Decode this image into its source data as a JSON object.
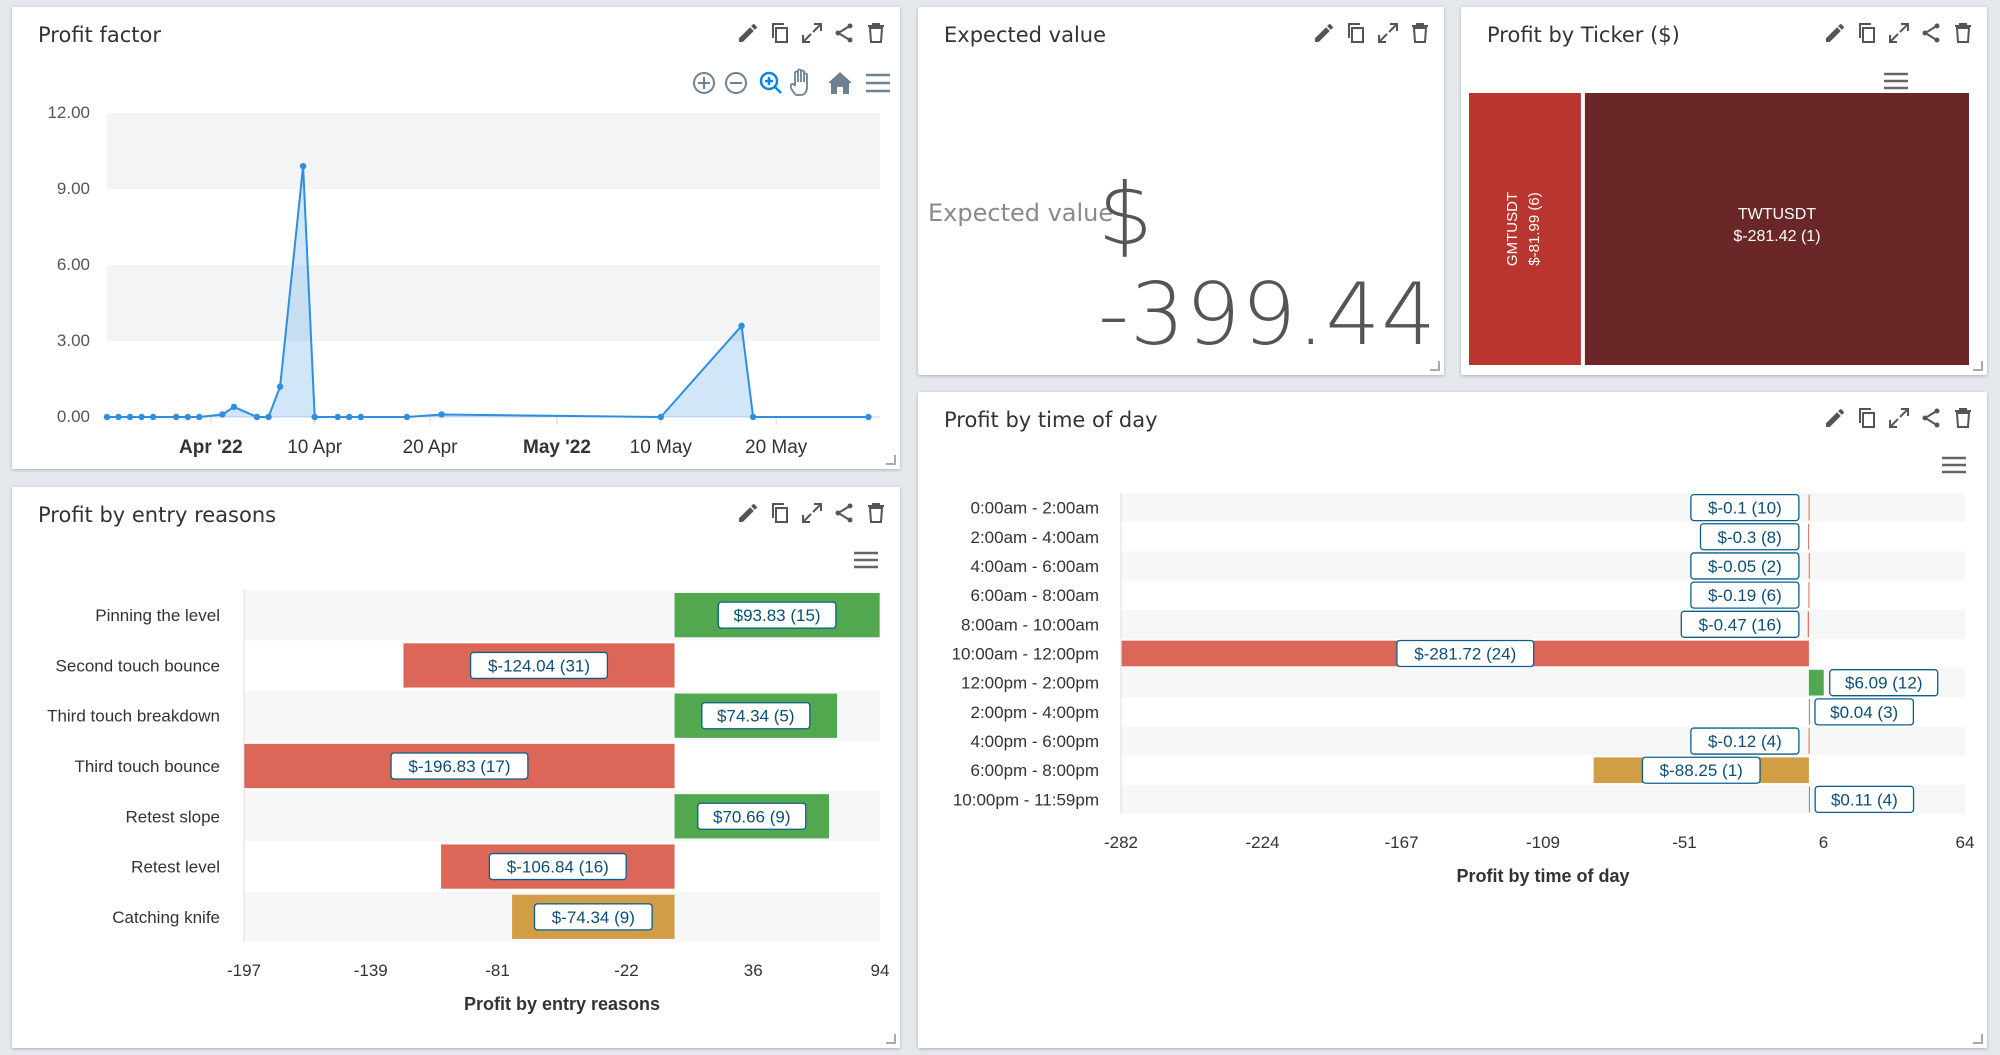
{
  "panels": {
    "profit_factor": {
      "title": "Profit factor",
      "toolbar_icons": [
        "zoom-in-icon",
        "zoom-out-icon",
        "magnify-icon",
        "pan-hand-icon",
        "home-icon",
        "menu-icon"
      ]
    },
    "expected_value": {
      "title": "Expected value",
      "label": "Expected value",
      "value": "$ -399.44"
    },
    "profit_by_ticker": {
      "title": "Profit by Ticker ($)"
    },
    "profit_by_entry": {
      "title": "Profit by entry reasons"
    },
    "profit_by_time": {
      "title": "Profit by time of day"
    }
  },
  "colors": {
    "positive": "#52a84e",
    "negative": "#dc6759",
    "neutral": "#d19d45",
    "line": "#2e8fe0",
    "treemap_light": "#b83530",
    "treemap_dark": "#6b2628"
  },
  "chart_data": [
    {
      "id": "profit_factor",
      "type": "area",
      "y_ticks": [
        "12.00",
        "9.00",
        "6.00",
        "3.00",
        "0.00"
      ],
      "ylim": [
        0,
        12
      ],
      "x_ticks": [
        {
          "label": "Apr '22",
          "bold": true,
          "date": "2022-04-01"
        },
        {
          "label": "10 Apr",
          "bold": false,
          "date": "2022-04-10"
        },
        {
          "label": "20 Apr",
          "bold": false,
          "date": "2022-04-20"
        },
        {
          "label": "May '22",
          "bold": true,
          "date": "2022-05-01"
        },
        {
          "label": "10 May",
          "bold": false,
          "date": "2022-05-10"
        },
        {
          "label": "20 May",
          "bold": false,
          "date": "2022-05-20"
        }
      ],
      "xlim": [
        "2022-03-23",
        "2022-05-29"
      ],
      "points": [
        [
          "2022-03-23",
          0
        ],
        [
          "2022-03-24",
          0
        ],
        [
          "2022-03-25",
          0
        ],
        [
          "2022-03-26",
          0
        ],
        [
          "2022-03-27",
          0
        ],
        [
          "2022-03-29",
          0
        ],
        [
          "2022-03-30",
          0
        ],
        [
          "2022-03-31",
          0
        ],
        [
          "2022-04-02",
          0.1
        ],
        [
          "2022-04-03",
          0.4
        ],
        [
          "2022-04-05",
          0
        ],
        [
          "2022-04-06",
          0
        ],
        [
          "2022-04-07",
          1.2
        ],
        [
          "2022-04-09",
          9.9
        ],
        [
          "2022-04-10",
          0
        ],
        [
          "2022-04-12",
          0
        ],
        [
          "2022-04-13",
          0
        ],
        [
          "2022-04-14",
          0
        ],
        [
          "2022-04-18",
          0
        ],
        [
          "2022-04-21",
          0.1
        ],
        [
          "2022-05-10",
          0
        ],
        [
          "2022-05-17",
          3.6
        ],
        [
          "2022-05-18",
          0
        ],
        [
          "2022-05-28",
          0
        ]
      ]
    },
    {
      "id": "profit_by_ticker",
      "type": "treemap",
      "items": [
        {
          "name": "GMTUSDT",
          "value": -81.99,
          "count": 6,
          "label": "$-81.99 (6)"
        },
        {
          "name": "TWTUSDT",
          "value": -281.42,
          "count": 1,
          "label": "$-281.42 (1)"
        }
      ]
    },
    {
      "id": "profit_by_entry",
      "type": "bar",
      "orientation": "horizontal",
      "xlabel": "Profit by entry reasons",
      "xlim": [
        -197,
        94
      ],
      "x_ticks": [
        "-197",
        "-139",
        "-81",
        "-22",
        "36",
        "94"
      ],
      "categories": [
        "Pinning the level",
        "Second touch bounce",
        "Third touch breakdown",
        "Third touch bounce",
        "Retest slope",
        "Retest level",
        "Catching knife"
      ],
      "values": [
        93.83,
        -124.04,
        74.34,
        -196.83,
        70.66,
        -106.84,
        -74.34
      ],
      "labels": [
        "$93.83 (15)",
        "$-124.04 (31)",
        "$74.34 (5)",
        "$-196.83 (17)",
        "$70.66 (9)",
        "$-106.84 (16)",
        "$-74.34 (9)"
      ],
      "tones": [
        "positive",
        "negative",
        "positive",
        "negative",
        "positive",
        "negative",
        "neutral"
      ]
    },
    {
      "id": "profit_by_time",
      "type": "bar",
      "orientation": "horizontal",
      "xlabel": "Profit by time of day",
      "xlim": [
        -282,
        64
      ],
      "x_ticks": [
        "-282",
        "-224",
        "-167",
        "-109",
        "-51",
        "6",
        "64"
      ],
      "categories": [
        "0:00am - 2:00am",
        "2:00am - 4:00am",
        "4:00am - 6:00am",
        "6:00am - 8:00am",
        "8:00am - 10:00am",
        "10:00am - 12:00pm",
        "12:00pm - 2:00pm",
        "2:00pm - 4:00pm",
        "4:00pm - 6:00pm",
        "6:00pm - 8:00pm",
        "10:00pm - 11:59pm"
      ],
      "values": [
        -0.1,
        -0.3,
        -0.05,
        -0.19,
        -0.47,
        -281.72,
        6.09,
        0.04,
        -0.12,
        -88.25,
        0.11
      ],
      "labels": [
        "$-0.1 (10)",
        "$-0.3 (8)",
        "$-0.05 (2)",
        "$-0.19 (6)",
        "$-0.47 (16)",
        "$-281.72 (24)",
        "$6.09 (12)",
        "$0.04 (3)",
        "$-0.12 (4)",
        "$-88.25 (1)",
        "$0.11 (4)"
      ],
      "tones": [
        "negative",
        "negative",
        "negative",
        "negative",
        "negative",
        "negative",
        "positive",
        "positive",
        "negative",
        "neutral",
        "positive"
      ]
    }
  ]
}
